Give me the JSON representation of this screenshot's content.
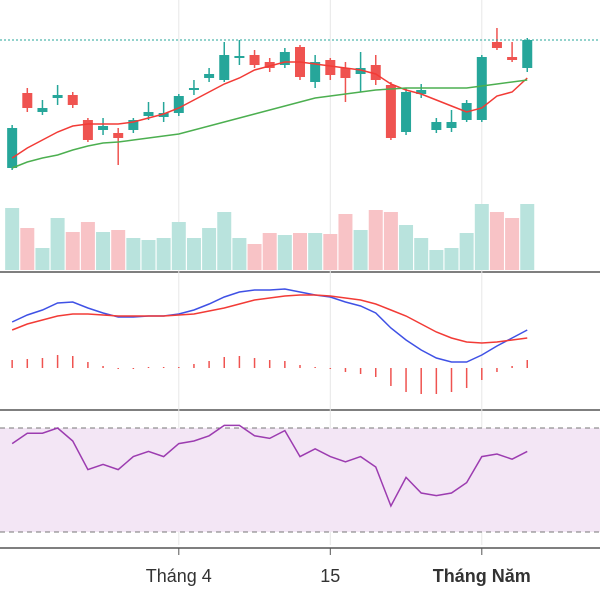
{
  "chart_data": [
    {
      "type": "candlestick",
      "categories": [
        null,
        null,
        null,
        null,
        null,
        null,
        null,
        null,
        null,
        null,
        null,
        "Tháng 4",
        null,
        null,
        null,
        null,
        null,
        null,
        null,
        null,
        null,
        "15",
        null,
        null,
        null,
        null,
        null,
        null,
        null,
        null,
        null,
        "Tháng Năm",
        null,
        null,
        null
      ],
      "open": [
        32,
        107,
        88,
        102,
        105,
        80,
        70,
        67,
        70,
        84,
        83,
        87,
        110,
        122,
        120,
        142,
        145,
        138,
        135,
        153,
        118,
        140,
        132,
        126,
        135,
        115,
        68,
        106,
        70,
        72,
        80,
        80,
        158,
        143,
        132
      ],
      "high": [
        75,
        112,
        100,
        115,
        108,
        82,
        82,
        72,
        82,
        98,
        98,
        106,
        120,
        132,
        158,
        160,
        150,
        142,
        152,
        155,
        145,
        142,
        138,
        148,
        145,
        118,
        112,
        116,
        82,
        90,
        100,
        145,
        172,
        158,
        162
      ],
      "low": [
        30,
        88,
        85,
        95,
        92,
        58,
        65,
        35,
        67,
        80,
        78,
        84,
        105,
        118,
        118,
        135,
        132,
        128,
        132,
        120,
        112,
        120,
        98,
        108,
        115,
        60,
        65,
        102,
        67,
        68,
        78,
        78,
        150,
        138,
        128
      ],
      "close": [
        72,
        92,
        92,
        105,
        95,
        60,
        74,
        62,
        80,
        88,
        87,
        104,
        112,
        126,
        145,
        144,
        135,
        132,
        148,
        123,
        138,
        125,
        122,
        132,
        120,
        62,
        108,
        110,
        78,
        78,
        97,
        143,
        152,
        140,
        160
      ],
      "up_color": "#26a69a",
      "down_color": "#ef5350",
      "last_line_color": "#26a69a",
      "series": [
        {
          "color": "#f23b36",
          "values": [
            42,
            52,
            60,
            68,
            74,
            76,
            76,
            76,
            78,
            82,
            86,
            92,
            100,
            108,
            116,
            122,
            130,
            134,
            138,
            138,
            136,
            134,
            132,
            130,
            126,
            116,
            110,
            106,
            100,
            94,
            88,
            92,
            104,
            108,
            122
          ]
        },
        {
          "color": "#4caf50",
          "values": [
            32,
            38,
            42,
            45,
            50,
            54,
            57,
            58,
            60,
            62,
            64,
            66,
            70,
            74,
            78,
            82,
            86,
            90,
            94,
            98,
            102,
            104,
            106,
            108,
            110,
            111,
            112,
            112,
            112,
            112,
            112,
            114,
            116,
            118,
            120
          ]
        }
      ],
      "ylim": [
        0,
        200
      ]
    },
    {
      "type": "volume",
      "values": [
        62,
        42,
        22,
        52,
        38,
        48,
        38,
        40,
        32,
        30,
        32,
        48,
        32,
        42,
        58,
        32,
        26,
        37,
        35,
        37,
        37,
        36,
        56,
        40,
        60,
        58,
        45,
        32,
        20,
        22,
        37,
        66,
        58,
        52,
        66
      ],
      "up_color": "#b9e3dd",
      "down_color": "#f8c3c6",
      "ylim": [
        0,
        70
      ]
    },
    {
      "type": "macd",
      "series": [
        {
          "color": "#3f51e5",
          "values": [
            46,
            53,
            58,
            65,
            66,
            60,
            55,
            51,
            51,
            52,
            52,
            54,
            58,
            64,
            71,
            76,
            78,
            78,
            79,
            76,
            73,
            71,
            66,
            62,
            55,
            40,
            28,
            18,
            10,
            6,
            6,
            13,
            22,
            30,
            38
          ]
        },
        {
          "color": "#f23b36",
          "values": [
            38,
            44,
            48,
            52,
            54,
            54,
            53,
            52,
            52,
            52,
            52,
            53,
            54,
            57,
            60,
            64,
            68,
            70,
            72,
            73,
            73,
            72,
            70,
            68,
            64,
            58,
            52,
            44,
            36,
            30,
            26,
            25,
            26,
            28,
            30
          ]
        }
      ],
      "histogram": [
        8,
        9,
        10,
        13,
        12,
        6,
        2,
        -1,
        -1,
        0,
        0,
        1,
        4,
        7,
        11,
        12,
        10,
        8,
        7,
        3,
        0,
        -1,
        -4,
        -6,
        -9,
        -18,
        -24,
        -26,
        -26,
        -24,
        -20,
        -12,
        -4,
        2,
        8
      ],
      "histogram_color": "#ef5350",
      "ylim": [
        -37,
        88
      ]
    },
    {
      "type": "rsi",
      "series": [
        {
          "color": "#9c3cb0",
          "values": [
            64,
            68,
            68,
            70,
            65,
            54,
            56,
            54,
            59,
            61,
            59,
            64,
            65,
            67,
            71,
            71,
            67,
            66,
            69,
            59,
            62,
            59,
            57,
            59,
            55,
            40,
            51,
            45,
            44,
            45,
            49,
            59,
            60,
            58,
            61
          ]
        }
      ],
      "bands": [
        70,
        30
      ],
      "band_fill": "#f3e6f5",
      "ylim": [
        25,
        75
      ]
    }
  ]
}
